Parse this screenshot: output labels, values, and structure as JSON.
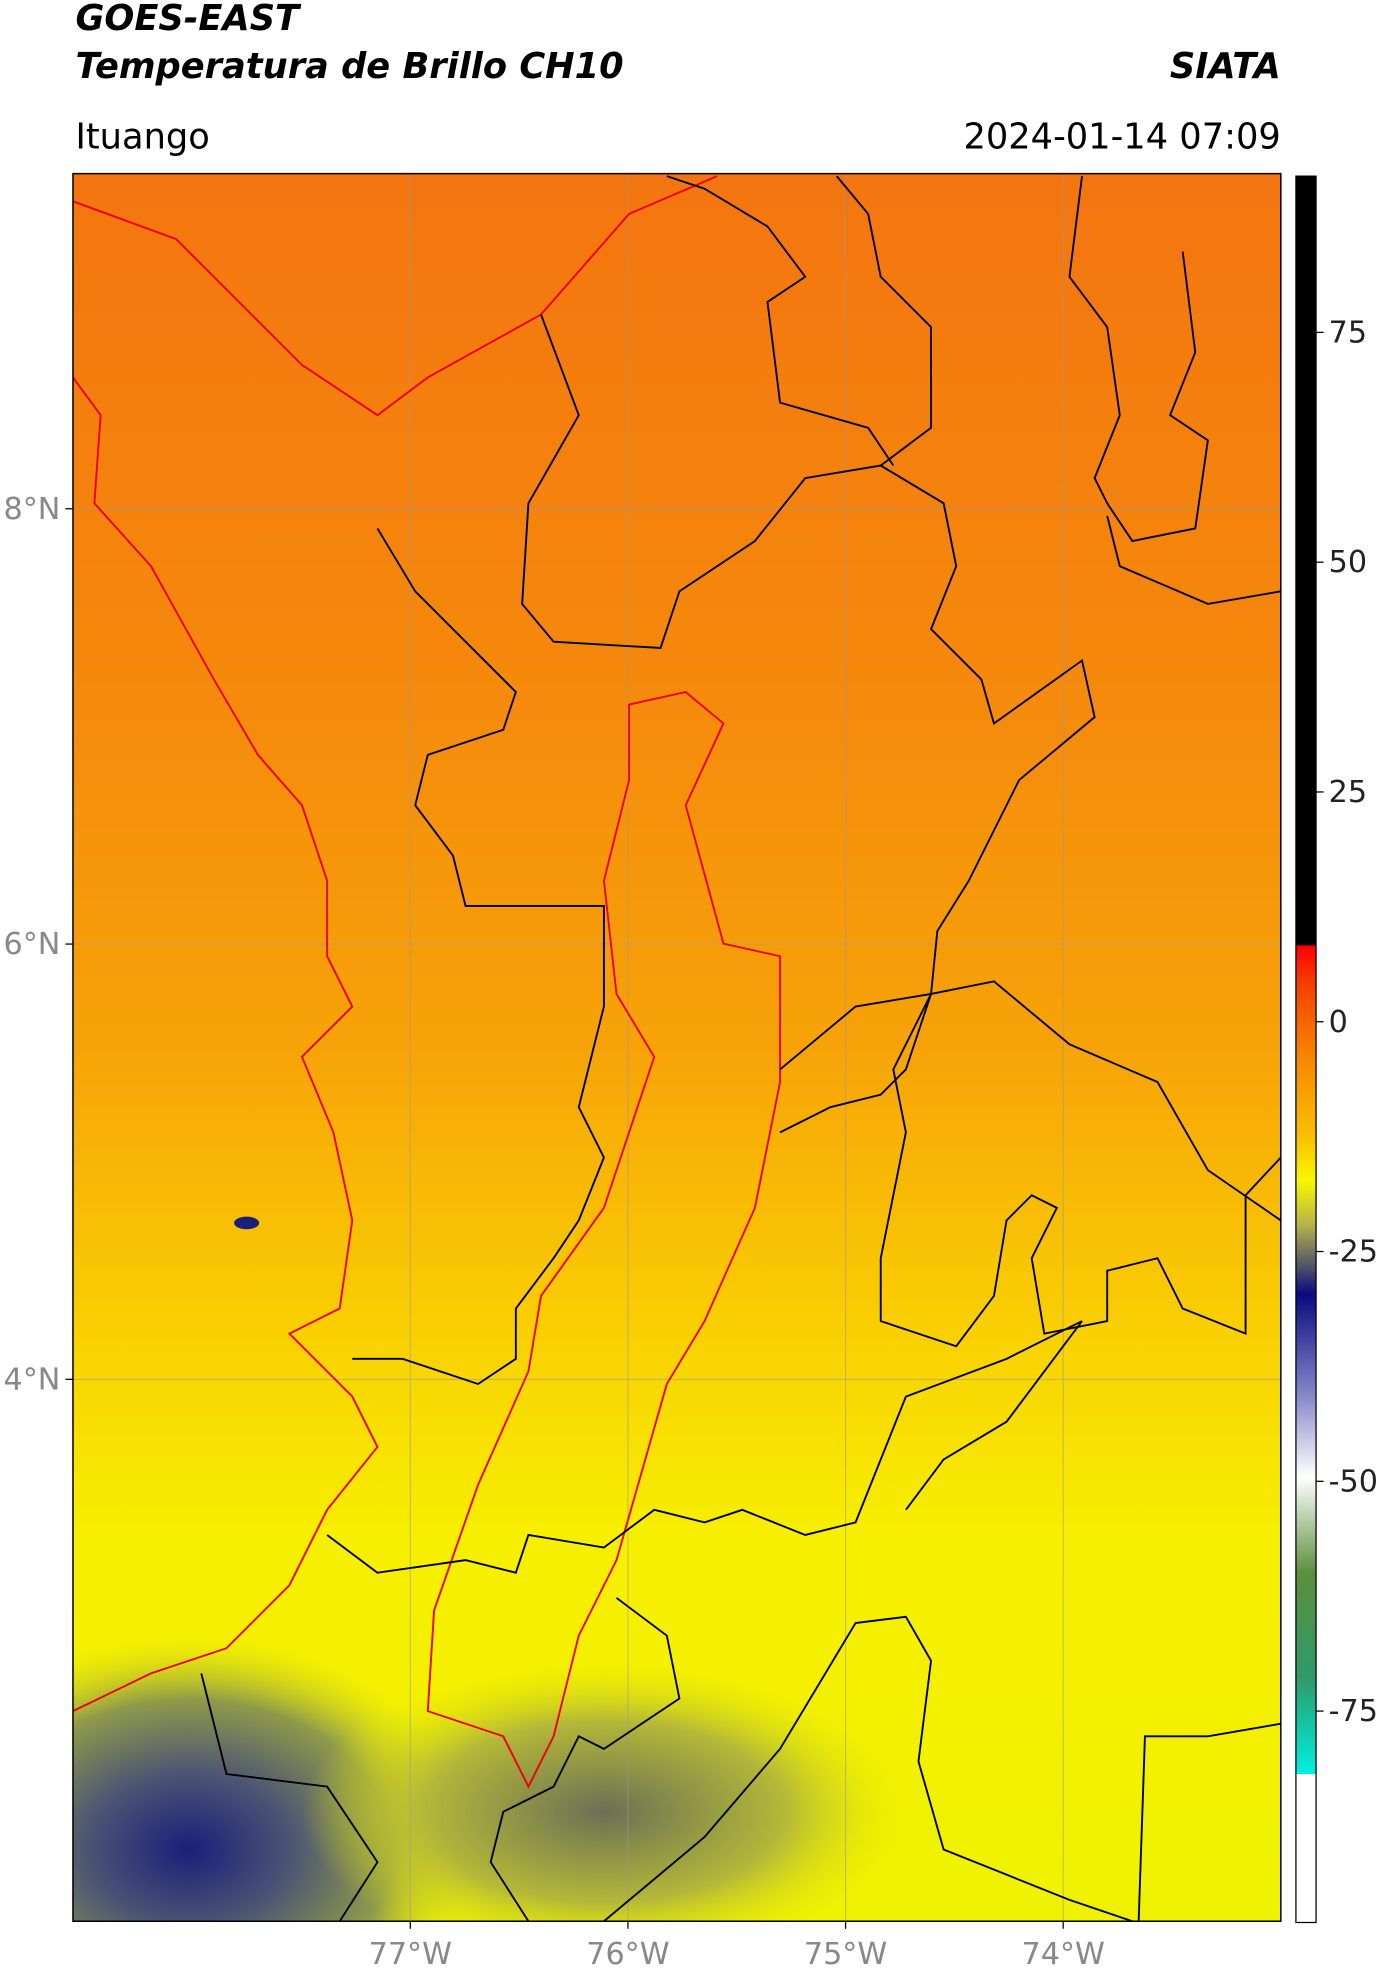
{
  "header": {
    "title": "GOES-EAST",
    "subtitle": "Temperatura de Brillo CH10",
    "source": "SIATA",
    "location": "Ituango",
    "timestamp": "2024-01-14 07:09"
  },
  "chart_data": {
    "type": "map",
    "xlim": [
      -78.55,
      -73.0
    ],
    "ylim": [
      1.51,
      9.54
    ],
    "xticks": [
      {
        "value": -77,
        "label": "77°W"
      },
      {
        "value": -76,
        "label": "76°W"
      },
      {
        "value": -75,
        "label": "75°W"
      },
      {
        "value": -74,
        "label": "74°W"
      }
    ],
    "yticks": [
      {
        "value": 4,
        "label": "4°N"
      },
      {
        "value": 6,
        "label": "6°N"
      },
      {
        "value": 8,
        "label": "8°N"
      }
    ],
    "grid": true,
    "colorbar": {
      "lim": [
        -98,
        92
      ],
      "ticks": [
        -75,
        -50,
        -25,
        0,
        25,
        50,
        75
      ]
    }
  }
}
